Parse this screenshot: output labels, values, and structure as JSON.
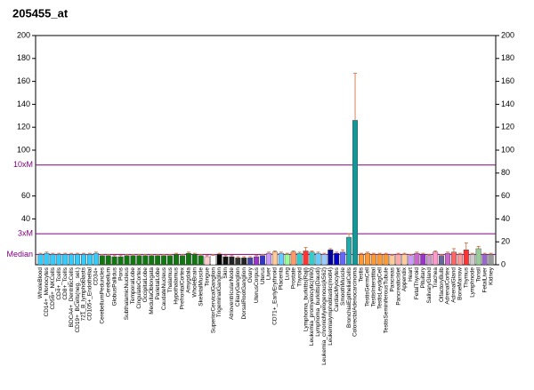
{
  "chart_data": {
    "type": "bar",
    "title": "205455_at",
    "categories": [
      "WholeBlood",
      "CD14+_Monocytes",
      "CD56+_NKCells",
      "CD4+_Tcells",
      "CD8+_Tcells",
      "BDCA4+_DentriticCells",
      "CD19+_BCells(neg._sel.)",
      "721_B_lymphoblasts",
      "CD105+_Endothelial",
      "CD34+",
      "CerebellumPeduncles",
      "Cerebellum",
      "GlobusPallidus",
      "Pons",
      "SubthalamicNucleus",
      "TemporalLobe",
      "CingulateCortex",
      "OccipitalLobe",
      "MedullaOblongata",
      "ParietalLobe",
      "CaudateNucleus",
      "Thalamus",
      "Hypothalamus",
      "PrefrontalCortex",
      "Amygdala",
      "WholeBrain",
      "SkeletalMuscle",
      "Tongue",
      "SuperiorCervicalGanglion",
      "TrigeminalGanglion",
      "Skin",
      "AtrioventricularNode",
      "CiliaryGanglion",
      "DorsalRootGanglion",
      "Ovary",
      "UterusCorpus",
      "Uterus",
      "Liver",
      "CD71+_EarlyErythroid",
      "Placenta",
      "Lung",
      "Prostate",
      "Thyroid",
      "Lymphoma_burkitts(Raji)",
      "Leukemia_promyelocytic(hl60)",
      "Lymphoma_burkitts(Daudi)",
      "Leukemia_chronicMyelogenous(k562)",
      "Leukemialymphoblastic(molt4)",
      "CardiacMyocytes",
      "SmoothMuscle",
      "BronchialEpithelialCells",
      "ColorectalAdenocarcinoma",
      "Testis",
      "TestisGermCell",
      "TestisInterstitial",
      "TestisLeydigCell",
      "TestisSeminiferousTubule",
      "Pancreas",
      "PancreaticIslet",
      "Appendix",
      "Heart",
      "FetalThyroid",
      "Pituitary",
      "SalivaryGland",
      "Trachea",
      "OlfactoryBulb",
      "AdrenalCortex",
      "AdrenalGland",
      "BoneMarrow",
      "Thymus",
      "Lymphnode",
      "Tonsil",
      "FetalLiver",
      "Kidney"
    ],
    "values": [
      9,
      10,
      9,
      9,
      9,
      9,
      9,
      9,
      9,
      10,
      8,
      8,
      7,
      7,
      8,
      8,
      8,
      8,
      8,
      8,
      8,
      8,
      9,
      8,
      10,
      9,
      8,
      7,
      8,
      9,
      7,
      7,
      6,
      6,
      6,
      7,
      8,
      10,
      11,
      10,
      9,
      11,
      10,
      12,
      11,
      10,
      9,
      13,
      10,
      11,
      24,
      126,
      9,
      10,
      9,
      9,
      9,
      8,
      9,
      9,
      8,
      10,
      9,
      8,
      11,
      8,
      10,
      11,
      9,
      13,
      9,
      14,
      9,
      9
    ],
    "errors": [
      1,
      1,
      1,
      1,
      1,
      1,
      1,
      1,
      1,
      1,
      1,
      1,
      1,
      1,
      1,
      1,
      1,
      1,
      1,
      1,
      1,
      1,
      1,
      1,
      1,
      1,
      1,
      1,
      1,
      1,
      1,
      1,
      1,
      1,
      1,
      1,
      1,
      1,
      1,
      1,
      1,
      1,
      1,
      3,
      1,
      1,
      1,
      1,
      1,
      2,
      3,
      41,
      1,
      1,
      1,
      1,
      1,
      1,
      1,
      1,
      1,
      1,
      1,
      1,
      1,
      1,
      1,
      3,
      1,
      6,
      1,
      2,
      1,
      1
    ],
    "colors": [
      "#33ccff",
      "#33ccff",
      "#33ccff",
      "#33ccff",
      "#33ccff",
      "#33ccff",
      "#33ccff",
      "#33ccff",
      "#33ccff",
      "#33ccff",
      "#117711",
      "#117711",
      "#117711",
      "#117711",
      "#117711",
      "#117711",
      "#117711",
      "#117711",
      "#117711",
      "#117711",
      "#117711",
      "#117711",
      "#117711",
      "#117711",
      "#117711",
      "#117711",
      "#117711",
      "#ffcccc",
      "#ffffff",
      "#000000",
      "#111111",
      "#222222",
      "#333333",
      "#222222",
      "#4444aa",
      "#9933cc",
      "#3333cc",
      "#cc99ff",
      "#ffcc99",
      "#66ccff",
      "#99ff99",
      "#ff9966",
      "#33cccc",
      "#ff3333",
      "#33cccc",
      "#66ccff",
      "#99ccff",
      "#000099",
      "#0000cc",
      "#6666ff",
      "#22aaaa",
      "#119999",
      "#ff9933",
      "#ff9933",
      "#ff9933",
      "#ff9933",
      "#ff9933",
      "#ffcc99",
      "#ffaaaa",
      "#ffcc99",
      "#cc99ff",
      "#cc66cc",
      "#9933cc",
      "#cc99cc",
      "#ff99cc",
      "#666699",
      "#cc66cc",
      "#ff6666",
      "#ff9999",
      "#ff3333",
      "#cccccc",
      "#99cc99",
      "#9966cc",
      "#999999"
    ],
    "error_color": "#cc6633",
    "ylim": [
      0,
      200
    ],
    "yticks": [
      40,
      60,
      100,
      120,
      140,
      160,
      180,
      200
    ],
    "y2lim": [
      0,
      200
    ],
    "y2ticks": [
      0,
      20,
      40,
      60,
      80,
      100,
      120,
      140,
      160,
      180,
      200
    ],
    "reference_lines": [
      {
        "label": "10xM",
        "value": 87
      },
      {
        "label": "3xM",
        "value": 27
      },
      {
        "label": "Median",
        "value": 9
      }
    ],
    "reference_color": "#800080"
  }
}
